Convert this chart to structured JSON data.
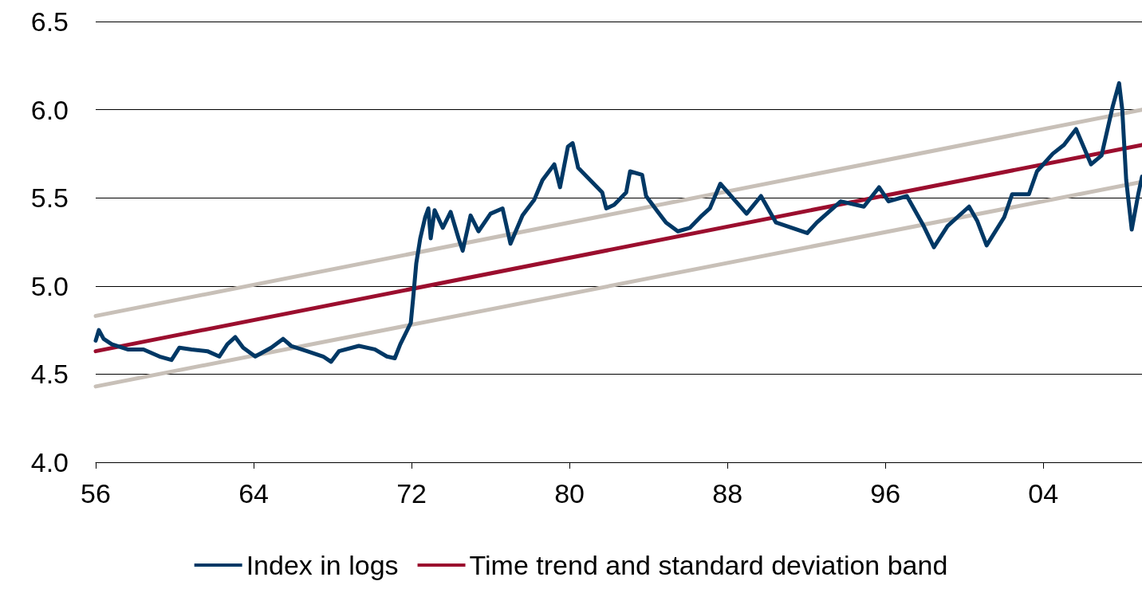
{
  "chart_data": {
    "type": "line",
    "xlim": [
      1956,
      2009
    ],
    "xticks": [
      {
        "value": 1956,
        "label": "56"
      },
      {
        "value": 1964,
        "label": "64"
      },
      {
        "value": 1972,
        "label": "72"
      },
      {
        "value": 1980,
        "label": "80"
      },
      {
        "value": 1988,
        "label": "88"
      },
      {
        "value": 1996,
        "label": "96"
      },
      {
        "value": 2004,
        "label": "04"
      }
    ],
    "ylim": [
      4.0,
      6.5
    ],
    "yticks": [
      {
        "value": 4.0,
        "label": "4.0"
      },
      {
        "value": 4.5,
        "label": "4.5"
      },
      {
        "value": 5.0,
        "label": "5.0"
      },
      {
        "value": 5.5,
        "label": "5.5"
      },
      {
        "value": 6.0,
        "label": "6.0"
      },
      {
        "value": 6.5,
        "label": "6.5"
      }
    ],
    "grid": "y",
    "legend": "bottom",
    "marker": "none",
    "line_style": "solid",
    "series": [
      {
        "name": "Index in logs",
        "color": "#003865",
        "x": [
          1956.0,
          1956.16,
          1956.4,
          1956.81,
          1957.62,
          1958.42,
          1959.23,
          1959.84,
          1960.24,
          1960.85,
          1961.66,
          1962.26,
          1962.67,
          1963.07,
          1963.47,
          1964.08,
          1964.89,
          1965.49,
          1965.9,
          1966.71,
          1967.52,
          1967.92,
          1968.32,
          1969.33,
          1970.14,
          1970.75,
          1971.15,
          1971.43,
          1971.96,
          1972.08,
          1972.24,
          1972.44,
          1972.69,
          1972.85,
          1972.97,
          1973.17,
          1973.58,
          1973.98,
          1974.38,
          1974.59,
          1974.99,
          1975.39,
          1976.0,
          1976.61,
          1977.01,
          1977.62,
          1978.22,
          1978.63,
          1979.23,
          1979.52,
          1979.92,
          1980.16,
          1980.44,
          1981.05,
          1981.66,
          1981.86,
          1982.26,
          1982.87,
          1983.07,
          1983.68,
          1983.88,
          1984.48,
          1984.89,
          1985.49,
          1986.1,
          1986.71,
          1987.11,
          1987.64,
          1988.97,
          1989.7,
          1990.46,
          1992.04,
          1992.53,
          1993.74,
          1994.91,
          1995.68,
          1996.16,
          1997.09,
          1997.94,
          1998.46,
          1999.15,
          2000.24,
          2000.65,
          2001.13,
          2002.02,
          2002.42,
          2003.27,
          2003.68,
          2004.48,
          2005.05,
          2005.66,
          2006.42,
          2006.95,
          2007.52,
          2007.84,
          2008.0,
          2008.2,
          2008.48,
          2008.81,
          2009.0
        ],
        "values": [
          4.69,
          4.75,
          4.7,
          4.67,
          4.64,
          4.64,
          4.6,
          4.58,
          4.65,
          4.64,
          4.63,
          4.6,
          4.67,
          4.71,
          4.65,
          4.6,
          4.65,
          4.7,
          4.66,
          4.63,
          4.6,
          4.57,
          4.63,
          4.66,
          4.64,
          4.6,
          4.59,
          4.67,
          4.79,
          4.93,
          5.13,
          5.27,
          5.39,
          5.44,
          5.27,
          5.43,
          5.33,
          5.42,
          5.27,
          5.2,
          5.4,
          5.31,
          5.41,
          5.44,
          5.24,
          5.4,
          5.49,
          5.6,
          5.69,
          5.56,
          5.79,
          5.81,
          5.67,
          5.6,
          5.53,
          5.44,
          5.46,
          5.53,
          5.65,
          5.63,
          5.51,
          5.42,
          5.36,
          5.31,
          5.33,
          5.4,
          5.44,
          5.58,
          5.41,
          5.51,
          5.36,
          5.3,
          5.36,
          5.48,
          5.45,
          5.56,
          5.48,
          5.51,
          5.34,
          5.22,
          5.34,
          5.45,
          5.37,
          5.23,
          5.39,
          5.52,
          5.52,
          5.65,
          5.75,
          5.8,
          5.89,
          5.69,
          5.74,
          6.02,
          6.15,
          6.0,
          5.6,
          5.32,
          5.52,
          5.62
        ]
      },
      {
        "name": "Time trend and standard deviation band",
        "color": "#9b0e2e",
        "x": [
          1956,
          2009
        ],
        "values": [
          4.63,
          5.8
        ]
      },
      {
        "color": "#c8c0b8",
        "x": [
          1956,
          2009
        ],
        "values": [
          4.83,
          6.0
        ]
      },
      {
        "color": "#c8c0b8",
        "x": [
          1956,
          2009
        ],
        "values": [
          4.43,
          5.59
        ]
      }
    ]
  }
}
